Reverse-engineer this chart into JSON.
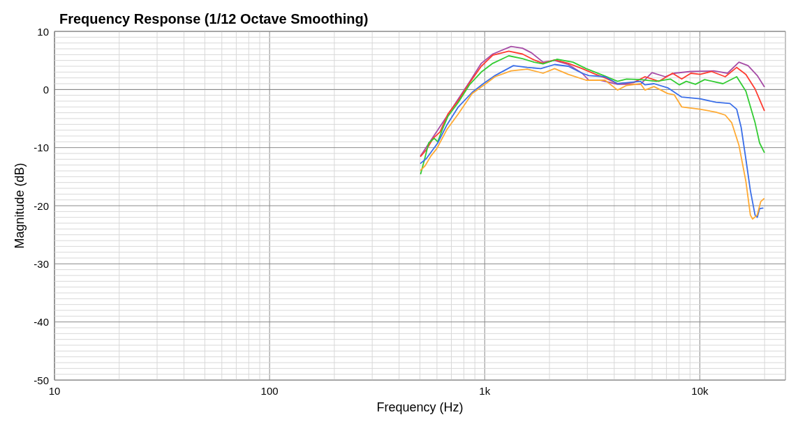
{
  "chart_data": {
    "type": "line",
    "title": "Frequency Response (1/12 Octave Smoothing)",
    "xlabel": "Frequency (Hz)",
    "ylabel": "Magnitude (dB)",
    "log": "x",
    "grid": true,
    "marker": "none",
    "line_style": "solid",
    "xlim": [
      10,
      25000
    ],
    "xticks": [
      10,
      100,
      {
        "value": 1000,
        "label": "1k"
      },
      {
        "value": 10000,
        "label": "10k"
      }
    ],
    "ylim": [
      -50,
      10
    ],
    "yticks": [
      -50,
      -40,
      -30,
      -20,
      -10,
      0,
      10
    ],
    "series": [
      {
        "color": "#a64ca6",
        "x": [
          504,
          667,
          853,
          964,
          1090,
          1326,
          1499,
          1653,
          1868,
          2113,
          2446,
          2837,
          3048,
          3449,
          4144,
          5298,
          5992,
          6901,
          7600,
          9089,
          11610,
          13450,
          15200,
          16760,
          18490,
          19930
        ],
        "values": [
          -11.4,
          -4.6,
          1.4,
          4.5,
          6.1,
          7.4,
          7.1,
          6.3,
          4.7,
          5.0,
          4.3,
          2.8,
          1.6,
          1.6,
          0.9,
          0.9,
          2.9,
          2.2,
          2.8,
          3.1,
          3.2,
          2.8,
          4.7,
          4.1,
          2.4,
          0.5
        ]
      },
      {
        "color": "#ff3b30",
        "x": [
          504,
          535,
          576,
          620,
          675,
          754,
          853,
          964,
          1090,
          1294,
          1499,
          1694,
          1868,
          2113,
          2446,
          2837,
          3282,
          3626,
          4144,
          4921,
          5563,
          6444,
          7466,
          8238,
          9089,
          10025,
          11330,
          13120,
          14840,
          16370,
          18060,
          19930
        ],
        "values": [
          -11.5,
          -10.4,
          -8.4,
          -7.3,
          -4.2,
          -1.9,
          1.2,
          4.0,
          5.9,
          6.6,
          6.1,
          5.1,
          4.5,
          5.1,
          4.5,
          3.6,
          2.6,
          2.0,
          1.0,
          1.2,
          2.2,
          1.4,
          2.8,
          1.8,
          2.8,
          2.6,
          3.1,
          2.2,
          3.8,
          2.6,
          0.1,
          -3.6
        ]
      },
      {
        "color": "#33cc33",
        "x": [
          504,
          523,
          549,
          583,
          605,
          635,
          675,
          754,
          853,
          964,
          1090,
          1294,
          1499,
          1694,
          1868,
          2166,
          2571,
          2961,
          3626,
          4144,
          4568,
          5298,
          6283,
          7293,
          8038,
          8652,
          9545,
          10530,
          12810,
          14840,
          16370,
          18060,
          18960,
          19930
        ],
        "values": [
          -14.5,
          -12.3,
          -9.2,
          -8.4,
          -9.0,
          -6.9,
          -4.6,
          -2.2,
          0.9,
          3.0,
          4.5,
          5.8,
          5.3,
          4.7,
          4.4,
          5.2,
          4.7,
          3.6,
          2.3,
          1.4,
          1.8,
          1.7,
          1.4,
          1.8,
          0.8,
          1.4,
          0.9,
          1.7,
          1.0,
          2.2,
          -0.3,
          -5.7,
          -9.2,
          -10.8
        ]
      },
      {
        "color": "#3a6ee8",
        "x": [
          504,
          535,
          563,
          605,
          667,
          754,
          874,
          985,
          1117,
          1359,
          1576,
          1822,
          2113,
          2446,
          2837,
          3048,
          3626,
          4144,
          5298,
          5563,
          6123,
          7087,
          8238,
          10025,
          11900,
          13800,
          14840,
          15560,
          16360,
          17180,
          18060,
          18490,
          18960,
          19640
        ],
        "values": [
          -12.7,
          -11.9,
          -10.8,
          -9.2,
          -6.1,
          -3.0,
          -0.5,
          1.0,
          2.4,
          4.1,
          3.8,
          3.6,
          4.3,
          4.0,
          2.8,
          2.4,
          2.2,
          1.0,
          1.4,
          0.8,
          1.0,
          0.3,
          -1.3,
          -1.6,
          -2.2,
          -2.4,
          -3.4,
          -6.5,
          -11.9,
          -17.4,
          -21.6,
          -22.0,
          -20.5,
          -20.4
        ]
      },
      {
        "color": "#ffaa33",
        "x": [
          504,
          529,
          563,
          598,
          667,
          754,
          874,
          1012,
          1117,
          1326,
          1576,
          1868,
          2113,
          2446,
          2961,
          3626,
          4144,
          4568,
          5298,
          5563,
          6123,
          7087,
          7600,
          8238,
          10025,
          11900,
          13120,
          14060,
          15200,
          16370,
          17180,
          17590,
          18490,
          19190,
          19860
        ],
        "values": [
          -13.9,
          -13.1,
          -11.4,
          -10.2,
          -6.9,
          -4.2,
          -0.7,
          1.0,
          2.2,
          3.2,
          3.5,
          2.8,
          3.6,
          2.6,
          1.6,
          1.6,
          -0.1,
          0.7,
          1.0,
          -0.1,
          0.5,
          -0.7,
          -0.9,
          -3.0,
          -3.4,
          -3.9,
          -4.4,
          -5.7,
          -9.6,
          -15.8,
          -21.6,
          -22.3,
          -21.6,
          -19.3,
          -18.8
        ]
      }
    ]
  }
}
